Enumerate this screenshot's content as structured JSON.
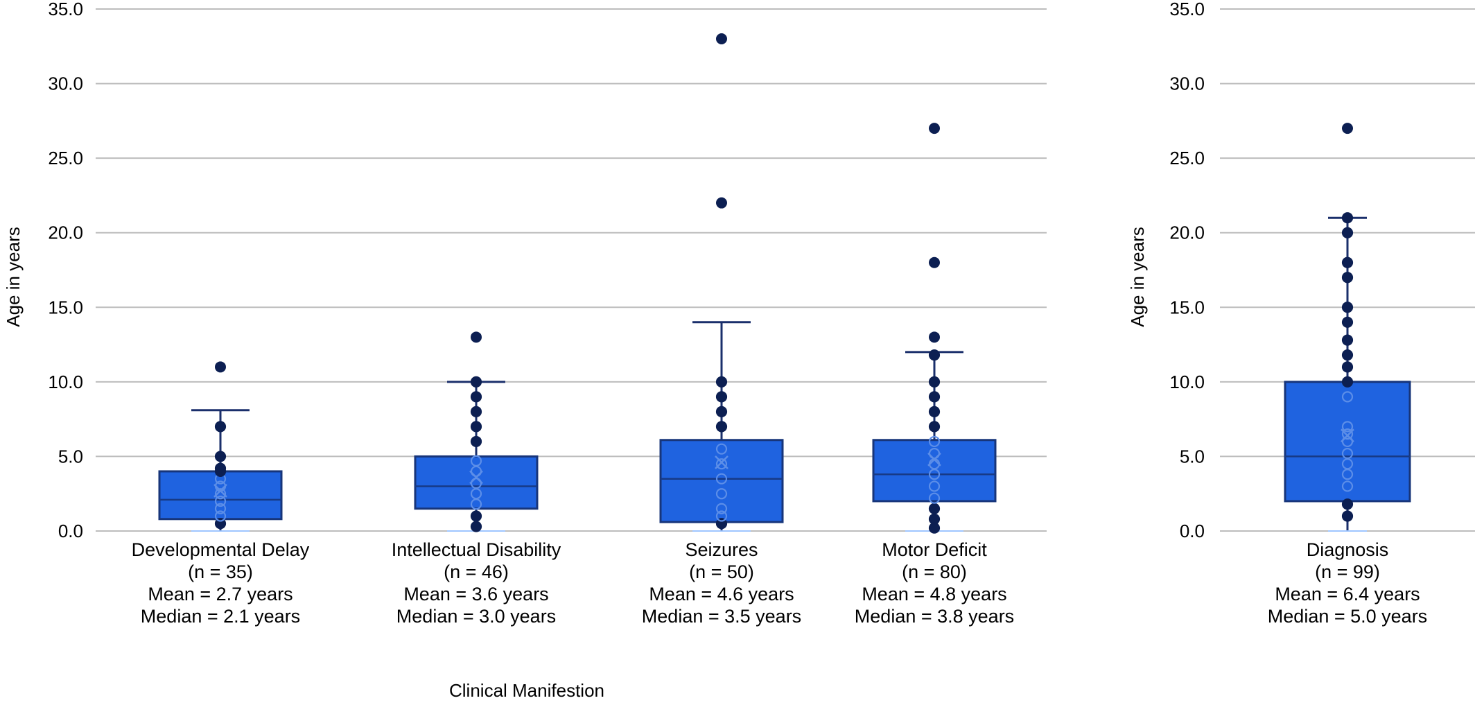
{
  "chart_data": [
    {
      "type": "box",
      "title": "",
      "xlabel": "Clinical Manifestion",
      "ylabel": "Age in years",
      "ylim": [
        0,
        35
      ],
      "yticks": [
        "0.0",
        "5.0",
        "10.0",
        "15.0",
        "20.0",
        "25.0",
        "30.0",
        "35.0"
      ],
      "grid": true,
      "box_color": "#1f63e0",
      "point_color": "#0c1f52",
      "groups": [
        {
          "name": "Developmental Delay",
          "label_lines": [
            "Developmental Delay",
            "(n = 35)",
            "Mean = 2.7 years",
            "Median = 2.1 years"
          ],
          "n": 35,
          "mean": 2.7,
          "median": 2.1,
          "q1": 0.8,
          "q3": 4.0,
          "whisker_low": 0.0,
          "whisker_high": 8.1,
          "outliers": [
            11
          ],
          "points": [
            0.5,
            1,
            1.5,
            2,
            2.5,
            3,
            3.5,
            4,
            4.2,
            5,
            7
          ]
        },
        {
          "name": "Intellectual Disability",
          "label_lines": [
            "Intellectual Disability",
            "(n = 46)",
            "Mean = 3.6 years",
            "Median = 3.0 years"
          ],
          "n": 46,
          "mean": 3.6,
          "median": 3.0,
          "q1": 1.5,
          "q3": 5.0,
          "whisker_low": 0.0,
          "whisker_high": 10.0,
          "outliers": [
            13
          ],
          "points": [
            0.3,
            1,
            1.8,
            2.5,
            3.2,
            4,
            4.7,
            6,
            7,
            8,
            9,
            10
          ]
        },
        {
          "name": "Seizures",
          "label_lines": [
            "Seizures",
            "(n = 50)",
            "Mean = 4.6 years",
            "Median = 3.5 years"
          ],
          "n": 50,
          "mean": 4.6,
          "median": 3.5,
          "q1": 0.6,
          "q3": 6.1,
          "whisker_low": 0.0,
          "whisker_high": 14.0,
          "outliers": [
            22,
            33
          ],
          "points": [
            0.5,
            1,
            1.5,
            2.5,
            3.5,
            4.5,
            5.5,
            7,
            8,
            9,
            10
          ]
        },
        {
          "name": "Motor Deficit",
          "label_lines": [
            "Motor Deficit",
            "(n = 80)",
            "Mean = 4.8 years",
            "Median = 3.8 years"
          ],
          "n": 80,
          "mean": 4.8,
          "median": 3.8,
          "q1": 2.0,
          "q3": 6.1,
          "whisker_low": 0.0,
          "whisker_high": 12.0,
          "outliers": [
            13,
            18,
            27
          ],
          "points": [
            0.2,
            0.8,
            1.5,
            2.2,
            3,
            3.8,
            4.5,
            5.2,
            6,
            7,
            8,
            9,
            10,
            11.8
          ]
        }
      ]
    },
    {
      "type": "box",
      "title": "",
      "xlabel": "",
      "ylabel": "Age in years",
      "ylim": [
        0,
        35
      ],
      "yticks": [
        "0.0",
        "5.0",
        "10.0",
        "15.0",
        "20.0",
        "25.0",
        "30.0",
        "35.0"
      ],
      "grid": true,
      "box_color": "#1f63e0",
      "point_color": "#0c1f52",
      "groups": [
        {
          "name": "Diagnosis",
          "label_lines": [
            "Diagnosis",
            "(n = 99)",
            "Mean = 6.4 years",
            "Median = 5.0 years"
          ],
          "n": 99,
          "mean": 6.4,
          "median": 5.0,
          "q1": 2.0,
          "q3": 10.0,
          "whisker_low": 0.0,
          "whisker_high": 21.0,
          "outliers": [
            27
          ],
          "points": [
            1,
            1.8,
            3,
            3.8,
            4.5,
            5.2,
            6,
            6.5,
            7,
            9,
            10,
            11,
            11.8,
            12.8,
            14,
            15,
            17,
            18,
            20,
            21
          ]
        }
      ]
    }
  ]
}
